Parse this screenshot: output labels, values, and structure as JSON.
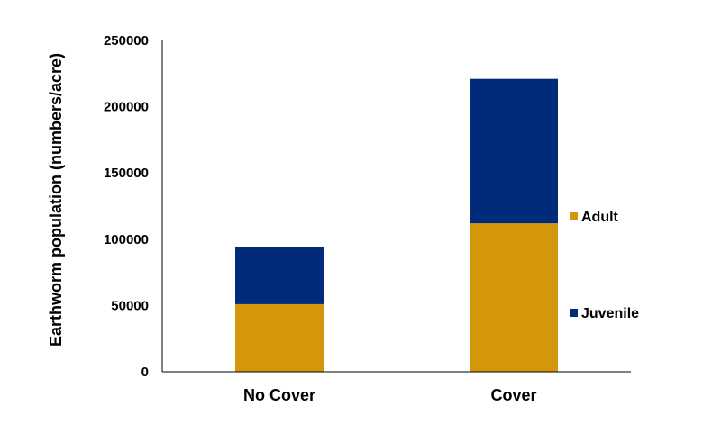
{
  "chart_data": {
    "type": "bar",
    "stacked": true,
    "categories": [
      "No Cover",
      "Cover"
    ],
    "series": [
      {
        "name": "Adult",
        "values": [
          51000,
          112000
        ],
        "color": "#D4960A"
      },
      {
        "name": "Juvenile",
        "values": [
          43000,
          109000
        ],
        "color": "#002A7A"
      }
    ],
    "title": "",
    "xlabel": "",
    "ylabel": "Earthworm population (numbers/acre)",
    "ylim": [
      0,
      250000
    ],
    "yticks": [
      0,
      50000,
      100000,
      150000,
      200000,
      250000
    ],
    "grid": false,
    "legend_position": "right"
  }
}
